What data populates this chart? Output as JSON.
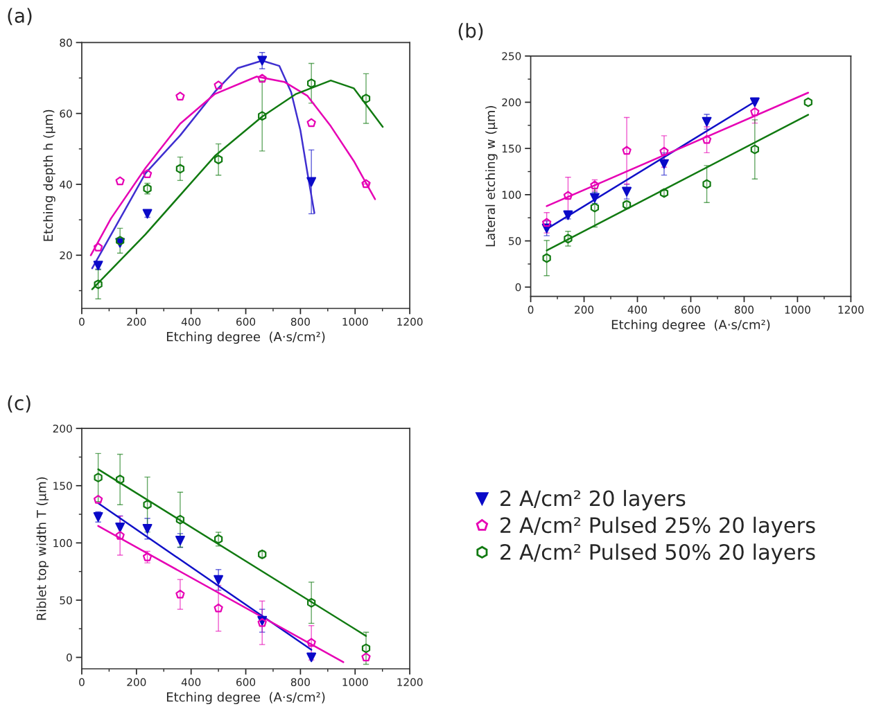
{
  "chart_data": [
    {
      "type": "scatter",
      "title": "(a)",
      "xlabel": "Etching degree  (A·s/cm²)",
      "ylabel": "Etching depth h (μm)",
      "x": [
        60,
        140,
        240,
        360,
        500,
        660,
        840,
        1040
      ],
      "xlim": [
        0,
        1200
      ],
      "xticks": [
        0,
        {
          "value": 100,
          "label": null
        },
        200,
        {
          "value": 300,
          "label": null
        },
        400,
        {
          "value": 500,
          "label": null
        },
        600,
        {
          "value": 700,
          "label": null
        },
        800,
        {
          "value": 900,
          "label": null
        },
        1000,
        {
          "value": 1100,
          "label": null
        },
        1200
      ],
      "ylim": [
        5,
        80
      ],
      "yticks": [
        {
          "value": 10,
          "label": null
        },
        20,
        {
          "value": 30,
          "label": null
        },
        40,
        {
          "value": 50,
          "label": null
        },
        60,
        {
          "value": 70,
          "label": null
        },
        80
      ],
      "grid": false,
      "series": [
        {
          "color": "#0a0ac8",
          "marker": "triangle",
          "values": [
            17.1,
            23.5,
            31.7,
            null,
            null,
            74.9,
            40.7,
            null
          ],
          "errors": [
            1,
            null,
            1,
            null,
            null,
            2.3,
            9,
            null
          ]
        },
        {
          "color": "#e600b4",
          "values": [
            22.2,
            40.9,
            42.9,
            64.8,
            67.9,
            69.8,
            57.3,
            40.1
          ],
          "xerrors": [
            null,
            null,
            null,
            null,
            null,
            null,
            null,
            10
          ]
        },
        {
          "color": "#117a11",
          "values": [
            11.8,
            24.1,
            38.8,
            44.4,
            47.0,
            59.3,
            68.5,
            64.2
          ],
          "errors": [
            4.1,
            3.5,
            1.5,
            3.3,
            4.4,
            9.9,
            5.6,
            7
          ]
        },
        {
          "type": "line",
          "color": "#3f2fd0",
          "line_style": "solid",
          "x": [
            38,
            233,
            360,
            487,
            571,
            660,
            723,
            766,
            800,
            825,
            851
          ],
          "values": [
            16.3,
            43.1,
            53.8,
            66.1,
            72.8,
            74.9,
            73.4,
            66.0,
            55.2,
            43.5,
            31.9
          ]
        },
        {
          "type": "line",
          "color": "#e600b4",
          "line_style": "solid",
          "x": [
            33,
            107,
            233,
            360,
            487,
            640,
            741,
            825,
            911,
            995,
            1073
          ],
          "values": [
            20.0,
            30.4,
            44.6,
            57.1,
            65.5,
            70.4,
            68.9,
            65.0,
            56.4,
            46.6,
            35.8
          ]
        },
        {
          "type": "line",
          "color": "#117a11",
          "line_style": "solid",
          "x": [
            38,
            233,
            487,
            660,
            784,
            911,
            995,
            1101
          ],
          "values": [
            10.4,
            25.9,
            48.0,
            59.1,
            65.5,
            69.3,
            67.1,
            56.2
          ]
        }
      ]
    },
    {
      "type": "scatter",
      "title": "(b)",
      "xlabel": "Etching degree  (A·s/cm²)",
      "ylabel": "Lateral etching w (μm)",
      "x": [
        60,
        140,
        240,
        360,
        500,
        660,
        840,
        1040
      ],
      "xlim": [
        0,
        1200
      ],
      "xticks": [
        0,
        {
          "value": 100,
          "label": null
        },
        200,
        {
          "value": 300,
          "label": null
        },
        400,
        {
          "value": 500,
          "label": null
        },
        600,
        {
          "value": 700,
          "label": null
        },
        800,
        {
          "value": 900,
          "label": null
        },
        1000,
        {
          "value": 1100,
          "label": null
        },
        1200
      ],
      "ylim": [
        -10,
        250
      ],
      "yticks": [
        0,
        {
          "value": 25,
          "label": null
        },
        50,
        {
          "value": 75,
          "label": null
        },
        100,
        {
          "value": 125,
          "label": null
        },
        150,
        {
          "value": 175,
          "label": null
        },
        200,
        {
          "value": 225,
          "label": null
        },
        250
      ],
      "grid": false,
      "series": [
        {
          "color": "#0a0ac8",
          "marker": "triangle",
          "values": [
            63.6,
            77.8,
            96.6,
            103.3,
            133.2,
            178.9,
            200,
            null
          ],
          "errors": [
            8,
            4,
            6,
            8,
            12,
            8,
            null,
            null
          ]
        },
        {
          "color": "#e600b4",
          "values": [
            69.6,
            98.8,
            110.0,
            147.5,
            146.7,
            159.4,
            189.4,
            null
          ],
          "errors": [
            11,
            20,
            6,
            36,
            17,
            14,
            12,
            null
          ]
        },
        {
          "color": "#117a11",
          "values": [
            31.4,
            52.4,
            86.1,
            89.1,
            101.8,
            111.5,
            149.0,
            200
          ],
          "errors": [
            19,
            8,
            21,
            4,
            3,
            20,
            32,
            null
          ]
        },
        {
          "type": "line",
          "color": "#1010c8",
          "line_style": "solid",
          "x": [
            60,
            840
          ],
          "values": [
            62.9,
            200.6
          ]
        },
        {
          "type": "line",
          "color": "#e600b4",
          "line_style": "solid",
          "x": [
            60,
            1040
          ],
          "values": [
            87.6,
            210.3
          ]
        },
        {
          "type": "line",
          "color": "#117a11",
          "line_style": "solid",
          "x": [
            60,
            1040
          ],
          "values": [
            39.7,
            186.4
          ]
        }
      ]
    },
    {
      "type": "scatter",
      "title": "(c)",
      "xlabel": "Etching degree  (A·s/cm²)",
      "ylabel": "Riblet top width T (μm)",
      "x": [
        60,
        140,
        240,
        360,
        500,
        660,
        840,
        1040
      ],
      "xlim": [
        0,
        1200
      ],
      "xticks": [
        0,
        {
          "value": 100,
          "label": null
        },
        200,
        {
          "value": 300,
          "label": null
        },
        400,
        {
          "value": 500,
          "label": null
        },
        600,
        {
          "value": 700,
          "label": null
        },
        800,
        {
          "value": 900,
          "label": null
        },
        1000,
        {
          "value": 1100,
          "label": null
        },
        1200
      ],
      "ylim": [
        -10,
        200
      ],
      "yticks": [
        0,
        {
          "value": 25,
          "label": null
        },
        50,
        {
          "value": 75,
          "label": null
        },
        100,
        {
          "value": 125,
          "label": null
        },
        150,
        {
          "value": 175,
          "label": null
        },
        200
      ],
      "grid": false,
      "legend": "right",
      "series": [
        {
          "name": "2 A/cm² 20 layers",
          "color": "#0a0ac8",
          "marker": "triangle",
          "values": [
            122.7,
            113.6,
            112.4,
            102.1,
            67.7,
            32.0,
            0,
            null
          ],
          "errors": [
            4.5,
            10,
            9,
            6,
            9,
            10,
            null,
            null
          ]
        },
        {
          "name": "2 A/cm² Pulsed 25% 20 layers",
          "color": "#e600b4",
          "values": [
            137.8,
            106.3,
            87.6,
            55.0,
            42.9,
            30.2,
            12.7,
            0
          ],
          "errors": [
            null,
            17,
            5,
            13,
            20,
            19,
            15,
            null
          ]
        },
        {
          "name": "2 A/cm² Pulsed 50% 20 layers",
          "color": "#117a11",
          "values": [
            157.1,
            155.4,
            133.5,
            120.3,
            103.3,
            90.0,
            47.7,
            7.9
          ],
          "errors": [
            21,
            22,
            24,
            24,
            6,
            3,
            18,
            14
          ]
        },
        {
          "type": "line",
          "color": "#1010c8",
          "line_style": "solid",
          "x": [
            60,
            840
          ],
          "values": [
            134.7,
            6.6
          ]
        },
        {
          "type": "line",
          "color": "#e600b4",
          "line_style": "solid",
          "x": [
            60,
            957
          ],
          "values": [
            114.8,
            -4.2
          ]
        },
        {
          "type": "line",
          "color": "#117a11",
          "line_style": "solid",
          "x": [
            60,
            1040
          ],
          "values": [
            164.3,
            18.7
          ]
        }
      ]
    }
  ]
}
